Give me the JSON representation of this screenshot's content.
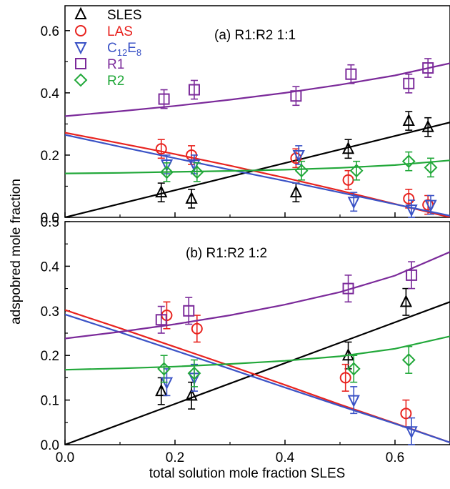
{
  "colors": {
    "SLES": "#000000",
    "LAS": "#e8231f",
    "C12E8": "#3b53c6",
    "R1": "#7b2a9a",
    "R2": "#22a83a"
  },
  "chart_data": [
    {
      "type": "scatter",
      "title": "(a) R1:R2 1:1",
      "xlabel": "",
      "ylabel": "",
      "xlim": [
        0,
        0.7
      ],
      "ylim": [
        0,
        0.68
      ],
      "xticks": [
        "0.0",
        "0.2",
        "0.4",
        "0.6"
      ],
      "yticks": [
        "0.0",
        "0.2",
        "0.4",
        "0.6"
      ],
      "grid": false,
      "legend": {
        "placement": "top-left",
        "entries": [
          {
            "key": "SLES",
            "label": "SLES",
            "marker": "triangle-up"
          },
          {
            "key": "LAS",
            "label": "LAS",
            "marker": "circle"
          },
          {
            "key": "C12E8",
            "label": "C",
            "sub1": "12",
            "mid": "E",
            "sub2": "8",
            "marker": "triangle-down"
          },
          {
            "key": "R1",
            "label": "R1",
            "marker": "square"
          },
          {
            "key": "R2",
            "label": "R2",
            "marker": "diamond"
          }
        ]
      },
      "series": [
        {
          "name": "SLES",
          "x": [
            0.175,
            0.23,
            0.42,
            0.515,
            0.625,
            0.66
          ],
          "y": [
            0.08,
            0.06,
            0.08,
            0.22,
            0.31,
            0.29
          ],
          "err": [
            0.03,
            0.03,
            0.03,
            0.03,
            0.03,
            0.03
          ],
          "fit": {
            "x": [
              0,
              0.7
            ],
            "y": [
              0,
              0.305
            ]
          }
        },
        {
          "name": "LAS",
          "x": [
            0.175,
            0.23,
            0.42,
            0.515,
            0.625,
            0.66
          ],
          "y": [
            0.22,
            0.2,
            0.19,
            0.12,
            0.06,
            0.04
          ],
          "err": [
            0.03,
            0.03,
            0.03,
            0.03,
            0.03,
            0.03
          ],
          "fit": {
            "x": [
              0,
              0.1,
              0.2,
              0.3,
              0.4,
              0.5,
              0.6,
              0.7
            ],
            "y": [
              0.272,
              0.238,
              0.203,
              0.166,
              0.127,
              0.086,
              0.043,
              0.0
            ]
          }
        },
        {
          "name": "C12E8",
          "x": [
            0.185,
            0.235,
            0.425,
            0.525,
            0.63,
            0.665
          ],
          "y": [
            0.17,
            0.17,
            0.2,
            0.05,
            0.025,
            0.04
          ],
          "err": [
            0.03,
            0.03,
            0.03,
            0.03,
            0.03,
            0.03
          ],
          "fit": {
            "x": [
              0,
              0.1,
              0.2,
              0.3,
              0.4,
              0.5,
              0.6,
              0.7
            ],
            "y": [
              0.265,
              0.227,
              0.19,
              0.153,
              0.117,
              0.08,
              0.042,
              0.005
            ]
          }
        },
        {
          "name": "R1",
          "x": [
            0.18,
            0.235,
            0.42,
            0.52,
            0.625,
            0.66
          ],
          "y": [
            0.38,
            0.41,
            0.39,
            0.46,
            0.43,
            0.48
          ],
          "err": [
            0.03,
            0.03,
            0.03,
            0.03,
            0.03,
            0.03
          ],
          "fit": {
            "x": [
              0,
              0.1,
              0.2,
              0.3,
              0.4,
              0.5,
              0.6,
              0.7
            ],
            "y": [
              0.325,
              0.341,
              0.358,
              0.378,
              0.4,
              0.426,
              0.456,
              0.495
            ]
          }
        },
        {
          "name": "R2",
          "x": [
            0.185,
            0.24,
            0.43,
            0.53,
            0.625,
            0.665
          ],
          "y": [
            0.145,
            0.145,
            0.15,
            0.15,
            0.18,
            0.16
          ],
          "err": [
            0.03,
            0.03,
            0.03,
            0.03,
            0.03,
            0.03
          ],
          "fit": {
            "x": [
              0,
              0.1,
              0.2,
              0.3,
              0.4,
              0.5,
              0.6,
              0.7
            ],
            "y": [
              0.141,
              0.143,
              0.146,
              0.149,
              0.153,
              0.159,
              0.168,
              0.183
            ]
          }
        }
      ]
    },
    {
      "type": "scatter",
      "title": "(b) R1:R2 1:2",
      "xlabel": "total solution mole fraction SLES",
      "ylabel": "adspobred mole fraction",
      "xlim": [
        0,
        0.7
      ],
      "ylim": [
        0,
        0.5
      ],
      "xticks": [
        "0.0",
        "0.2",
        "0.4",
        "0.6"
      ],
      "yticks": [
        "0.0",
        "0.1",
        "0.2",
        "0.3",
        "0.4",
        "0.5"
      ],
      "grid": false,
      "series": [
        {
          "name": "SLES",
          "x": [
            0.175,
            0.23,
            0.515,
            0.62
          ],
          "y": [
            0.12,
            0.11,
            0.2,
            0.32
          ],
          "err": [
            0.03,
            0.03,
            0.03,
            0.03
          ],
          "fit": {
            "x": [
              0,
              0.7
            ],
            "y": [
              0,
              0.32
            ]
          }
        },
        {
          "name": "LAS",
          "x": [
            0.185,
            0.24,
            0.51,
            0.62
          ],
          "y": [
            0.29,
            0.26,
            0.15,
            0.07
          ],
          "err": [
            0.03,
            0.03,
            0.03,
            0.03
          ],
          "fit": {
            "x": [
              0,
              0.1,
              0.2,
              0.3,
              0.4,
              0.5,
              0.6,
              0.7
            ],
            "y": [
              0.302,
              0.261,
              0.219,
              0.177,
              0.134,
              0.09,
              0.048,
              0.005
            ]
          }
        },
        {
          "name": "C12E8",
          "x": [
            0.185,
            0.235,
            0.525,
            0.63
          ],
          "y": [
            0.14,
            0.15,
            0.1,
            0.03
          ],
          "err": [
            0.03,
            0.03,
            0.03,
            0.03
          ],
          "fit": {
            "x": [
              0,
              0.1,
              0.2,
              0.3,
              0.4,
              0.5,
              0.6,
              0.7
            ],
            "y": [
              0.292,
              0.252,
              0.211,
              0.17,
              0.128,
              0.087,
              0.047,
              0.005
            ]
          }
        },
        {
          "name": "R1",
          "x": [
            0.175,
            0.225,
            0.515,
            0.63
          ],
          "y": [
            0.28,
            0.3,
            0.35,
            0.38
          ],
          "err": [
            0.03,
            0.03,
            0.03,
            0.03
          ],
          "fit": {
            "x": [
              0,
              0.1,
              0.2,
              0.3,
              0.4,
              0.5,
              0.6,
              0.7
            ],
            "y": [
              0.238,
              0.253,
              0.27,
              0.29,
              0.314,
              0.342,
              0.379,
              0.432
            ]
          }
        },
        {
          "name": "R2",
          "x": [
            0.18,
            0.235,
            0.525,
            0.625
          ],
          "y": [
            0.17,
            0.16,
            0.17,
            0.19
          ],
          "err": [
            0.03,
            0.03,
            0.03,
            0.03
          ],
          "fit": {
            "x": [
              0,
              0.1,
              0.2,
              0.3,
              0.4,
              0.5,
              0.6,
              0.7
            ],
            "y": [
              0.168,
              0.171,
              0.175,
              0.181,
              0.188,
              0.198,
              0.215,
              0.243
            ]
          }
        }
      ]
    }
  ]
}
